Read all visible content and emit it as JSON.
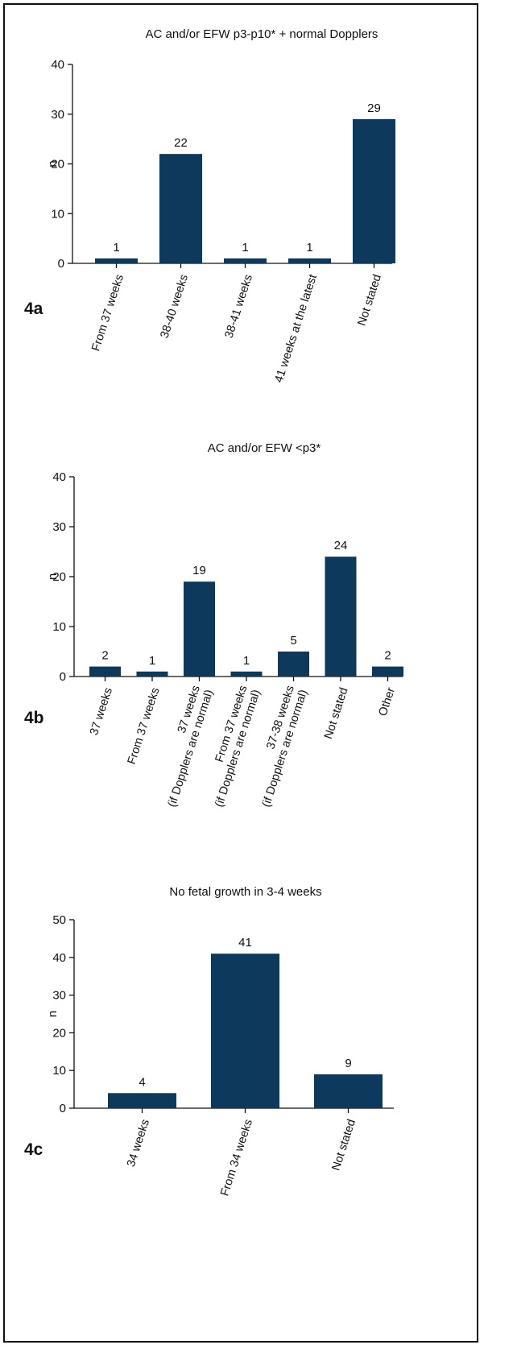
{
  "chart_data": [
    {
      "type": "bar",
      "panel_label": "4a",
      "title": "AC and/or EFW p3-p10* + normal Dopplers",
      "ylabel": "n",
      "ylim": [
        0,
        40
      ],
      "yticks": [
        0,
        10,
        20,
        30,
        40
      ],
      "categories": [
        [
          "From 37 weeks"
        ],
        [
          "38-40 weeks"
        ],
        [
          "38-41 weeks"
        ],
        [
          "41 weeks at the latest"
        ],
        [
          "Not stated"
        ]
      ],
      "values": [
        1,
        22,
        1,
        1,
        29
      ],
      "color": "#0d3a5c"
    },
    {
      "type": "bar",
      "panel_label": "4b",
      "title": "AC and/or EFW <p3*",
      "ylabel": "n",
      "ylim": [
        0,
        40
      ],
      "yticks": [
        0,
        10,
        20,
        30,
        40
      ],
      "categories": [
        [
          "37 weeks"
        ],
        [
          "From 37 weeks"
        ],
        [
          "37 weeks",
          "(if Dopplers are normal)"
        ],
        [
          "From 37 weeks",
          "(if Dopplers are normal)"
        ],
        [
          "37-38 weeks",
          "(if Dopplers are normal)"
        ],
        [
          "Not stated"
        ],
        [
          "Other"
        ]
      ],
      "values": [
        2,
        1,
        19,
        1,
        5,
        24,
        2
      ],
      "color": "#0d3a5c"
    },
    {
      "type": "bar",
      "panel_label": "4c",
      "title": "No fetal growth in 3-4 weeks",
      "ylabel": "n",
      "ylim": [
        0,
        50
      ],
      "yticks": [
        0,
        10,
        20,
        30,
        40,
        50
      ],
      "categories": [
        [
          "34 weeks"
        ],
        [
          "From 34 weeks"
        ],
        [
          "Not stated"
        ]
      ],
      "values": [
        4,
        41,
        9
      ],
      "color": "#0d3a5c"
    }
  ]
}
